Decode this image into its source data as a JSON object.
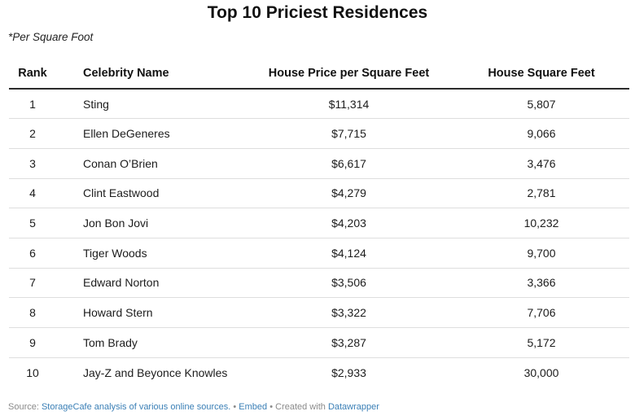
{
  "title": "Top 10 Priciest Residences",
  "subtitle": "*Per Square Foot",
  "columns": {
    "rank": "Rank",
    "name": "Celebrity Name",
    "price": "House Price per Square Feet",
    "sqft": "House Square Feet"
  },
  "chart_data": {
    "type": "table",
    "title": "Top 10 Priciest Residences",
    "subtitle": "*Per Square Foot",
    "columns": [
      "Rank",
      "Celebrity Name",
      "House Price per Square Feet",
      "House Square Feet"
    ],
    "rows": [
      {
        "rank": "1",
        "name": "Sting",
        "price": "$11,314",
        "sqft": "5,807"
      },
      {
        "rank": "2",
        "name": "Ellen DeGeneres",
        "price": "$7,715",
        "sqft": "9,066"
      },
      {
        "rank": "3",
        "name": "Conan O’Brien",
        "price": "$6,617",
        "sqft": "3,476"
      },
      {
        "rank": "4",
        "name": "Clint Eastwood",
        "price": "$4,279",
        "sqft": "2,781"
      },
      {
        "rank": "5",
        "name": "Jon Bon Jovi",
        "price": "$4,203",
        "sqft": "10,232"
      },
      {
        "rank": "6",
        "name": "Tiger Woods",
        "price": "$4,124",
        "sqft": "9,700"
      },
      {
        "rank": "7",
        "name": "Edward Norton",
        "price": "$3,506",
        "sqft": "3,366"
      },
      {
        "rank": "8",
        "name": "Howard Stern",
        "price": "$3,322",
        "sqft": "7,706"
      },
      {
        "rank": "9",
        "name": "Tom Brady",
        "price": "$3,287",
        "sqft": "5,172"
      },
      {
        "rank": "10",
        "name": "Jay-Z and Beyonce Knowles",
        "price": "$2,933",
        "sqft": "30,000"
      }
    ]
  },
  "footer": {
    "source_prefix": "Source: ",
    "source_link": "StorageCafe analysis of various online sources.",
    "sep1": " • ",
    "embed": "Embed",
    "sep2": " • Created with ",
    "tool": "Datawrapper"
  },
  "colors": {
    "link": "#3a7fb6",
    "header_rule": "#2b2b2b",
    "row_rule": "#dedede"
  }
}
